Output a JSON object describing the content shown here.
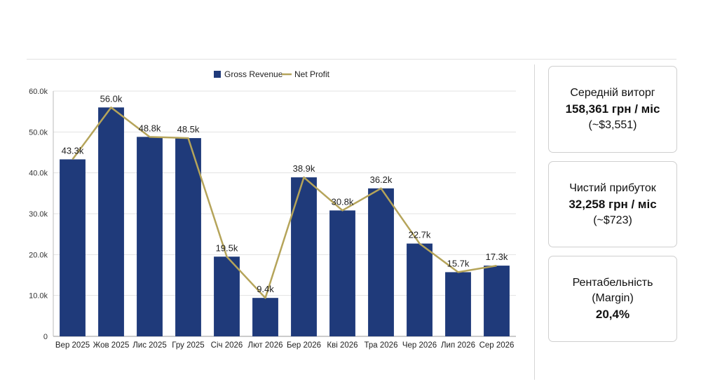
{
  "chart_data": {
    "type": "bar",
    "categories": [
      "Вер 2025",
      "Жов 2025",
      "Лис 2025",
      "Гру 2025",
      "Січ 2026",
      "Лют 2026",
      "Бер 2026",
      "Кві 2026",
      "Тра 2026",
      "Чер 2026",
      "Лип 2026",
      "Сер 2026"
    ],
    "series": [
      {
        "name": "Gross Revenue",
        "type": "bar",
        "color": "#1f3a7a",
        "values": [
          43300,
          56000,
          48800,
          48500,
          19500,
          9400,
          38900,
          30800,
          36200,
          22700,
          15700,
          17300
        ]
      },
      {
        "name": "Net Profit",
        "type": "line",
        "color": "#b5a45a",
        "values": [
          43300,
          56000,
          48800,
          48500,
          19500,
          9400,
          38900,
          30800,
          36200,
          22700,
          15700,
          17300
        ]
      }
    ],
    "data_labels": [
      "43.3k",
      "56.0k",
      "48.8k",
      "48.5k",
      "19.5k",
      "9.4k",
      "38.9k",
      "30.8k",
      "36.2k",
      "22.7k",
      "15.7k",
      "17.3k"
    ],
    "y_ticks": [
      0,
      10000,
      20000,
      30000,
      40000,
      50000,
      60000
    ],
    "y_tick_labels": [
      "0",
      "10.0k",
      "20.0k",
      "30.0k",
      "40.0k",
      "50.0k",
      "60.0k"
    ],
    "ylim": [
      0,
      60000
    ],
    "grid": true,
    "legend_position": "top-center",
    "title": "",
    "xlabel": "",
    "ylabel": ""
  },
  "cards": [
    {
      "label": "Середній виторг",
      "value": "158,361 грн / міс",
      "sub": "(~$3,551)"
    },
    {
      "label": "Чистий прибуток",
      "value": "32,258 грн / міс",
      "sub": "(~$723)"
    },
    {
      "label": "Рентабельність",
      "sub": "(Margin)",
      "value": "20,4%"
    }
  ]
}
